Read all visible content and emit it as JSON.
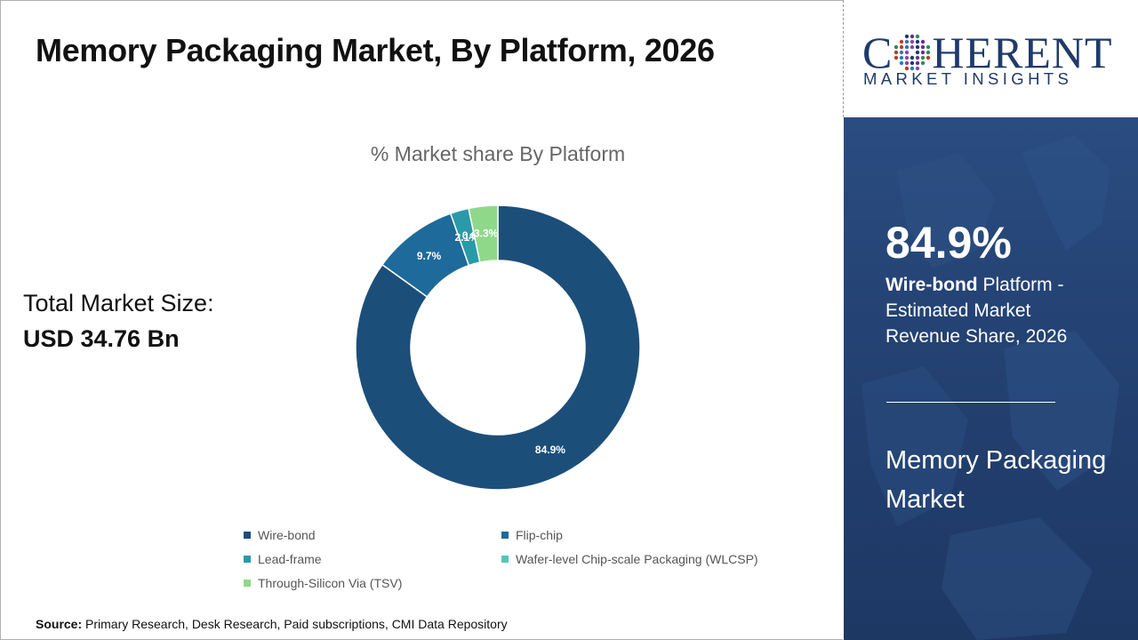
{
  "page": {
    "title": "Memory Packaging Market, By Platform, 2026",
    "total_label": "Total Market Size:",
    "total_value": "USD 34.76 Bn",
    "source_label": "Source:",
    "source_text": "Primary Research, Desk Research, Paid subscriptions, CMI Data Repository"
  },
  "logo": {
    "word_start": "C",
    "word_end": "HERENT",
    "subtitle": "MARKET INSIGHTS"
  },
  "panel": {
    "stat_value": "84.9%",
    "stat_segment": "Wire-bond",
    "stat_desc": " Platform - Estimated Market Revenue Share, 2026",
    "market_name": "Memory Packaging Market"
  },
  "chart_data": {
    "type": "donut",
    "title": "% Market share By Platform",
    "unit": "%",
    "legend_position": "bottom",
    "categories": [
      "Wire-bond",
      "Flip-chip",
      "Lead-frame",
      "Wafer-level Chip-scale Packaging (WLCSP)",
      "Through-Silicon Via (TSV)"
    ],
    "values": [
      84.9,
      9.7,
      2.1,
      0.0,
      3.3
    ],
    "labels": [
      "84.9%",
      "9.7%",
      "2.1%",
      "0.0%",
      "3.3%"
    ],
    "colors": [
      "#1c4e7a",
      "#1e6a9a",
      "#2a9aa8",
      "#55c4bc",
      "#8fd88a"
    ]
  }
}
